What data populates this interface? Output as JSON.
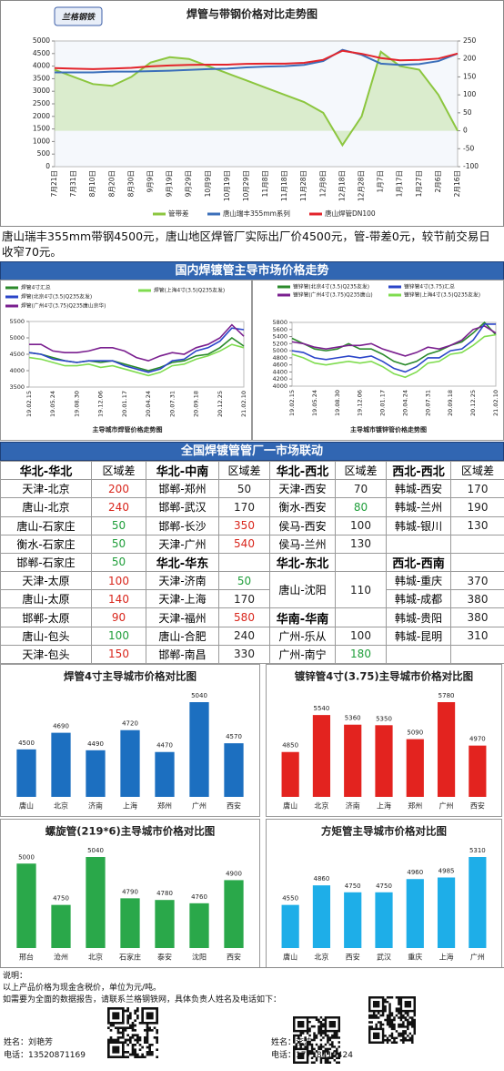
{
  "logo": "兰格钢铁",
  "summary": "唐山瑞丰355mm带钢4500元，唐山地区焊管厂实际出厂价4500元，管-带差0元，较节前交易日收窄70元。",
  "banners": [
    "国内焊镀管主导市场价格走势",
    "全国焊镀管管厂一市场联动"
  ],
  "chart_data": [
    {
      "type": "line",
      "title": "焊管与带钢价格对比走势图",
      "categories": [
        "7月21日",
        "7月31日",
        "8月10日",
        "8月20日",
        "8月30日",
        "9月9日",
        "9月19日",
        "9月29日",
        "10月9日",
        "10月19日",
        "10月29日",
        "11月8日",
        "11月18日",
        "11月28日",
        "12月8日",
        "12月18日",
        "12月28日",
        "1月7日",
        "1月17日",
        "1月27日",
        "2月6日",
        "2月16日"
      ],
      "series": [
        {
          "name": "管带差",
          "color": "#8cc63f",
          "type": "area",
          "axis": "y2",
          "values": [
            170,
            150,
            130,
            125,
            150,
            190,
            205,
            200,
            180,
            160,
            140,
            120,
            100,
            80,
            50,
            -40,
            40,
            220,
            180,
            170,
            100,
            0
          ]
        },
        {
          "name": "唐山瑞丰355mm系列",
          "color": "#3b6fba",
          "values": [
            3750,
            3750,
            3750,
            3780,
            3780,
            3800,
            3820,
            3850,
            3880,
            3900,
            3950,
            3980,
            4000,
            4050,
            4200,
            4650,
            4450,
            4100,
            4050,
            4080,
            4200,
            4500
          ]
        },
        {
          "name": "唐山焊管DN100",
          "color": "#e3242b",
          "values": [
            3920,
            3900,
            3880,
            3905,
            3930,
            3990,
            4025,
            4050,
            4060,
            4060,
            4090,
            4100,
            4100,
            4130,
            4250,
            4610,
            4490,
            4320,
            4230,
            4250,
            4300,
            4500
          ]
        }
      ],
      "ylim": [
        0,
        5000
      ],
      "yticks": [
        0,
        500,
        1000,
        1500,
        2000,
        2500,
        3000,
        3500,
        4000,
        4500,
        5000
      ],
      "y2lim": [
        -100,
        250
      ],
      "y2ticks": [
        -100,
        -50,
        0,
        50,
        100,
        150,
        200,
        250
      ],
      "grid": false
    },
    {
      "type": "line",
      "title": "主导城市焊管价格走势图",
      "categories": [
        "19.02.15",
        null,
        "19.05.24",
        null,
        "19.08.30",
        null,
        "19.12.06",
        null,
        "20.01.17",
        null,
        "20.04.24",
        null,
        "20.07.31",
        null,
        "20.09.18",
        null,
        "20.12.25",
        null,
        "21.02.10"
      ],
      "series": [
        {
          "name": "焊管4寸汇总",
          "color": "#2b8a2b",
          "values": [
            4550,
            4500,
            4400,
            4300,
            4250,
            4300,
            4250,
            4300,
            4200,
            4100,
            4000,
            4100,
            4250,
            4300,
            4450,
            4500,
            4700,
            5000,
            4750
          ]
        },
        {
          "name": "焊管(北京4寸(3.5)Q235友发)",
          "color": "#2a44c8",
          "values": [
            4550,
            4500,
            4350,
            4300,
            4250,
            4300,
            4300,
            4300,
            4150,
            4050,
            3950,
            4050,
            4300,
            4350,
            4600,
            4700,
            4900,
            5300,
            5250
          ]
        },
        {
          "name": "焊管(广州4寸(3.75)Q235唐山京华)",
          "color": "#7a1f8f",
          "values": [
            4800,
            4800,
            4600,
            4550,
            4550,
            4600,
            4700,
            4700,
            4600,
            4400,
            4300,
            4450,
            4550,
            4500,
            4700,
            4800,
            5000,
            5400,
            5050
          ]
        },
        {
          "name": "焊管(上海4寸(3.5)Q235友发)",
          "color": "#7fdc4f",
          "values": [
            4400,
            4350,
            4250,
            4150,
            4150,
            4200,
            4100,
            4150,
            4050,
            3950,
            3850,
            3950,
            4150,
            4200,
            4350,
            4450,
            4600,
            4800,
            4700
          ]
        }
      ],
      "ylim": [
        3500,
        5500
      ],
      "yticks": [
        3500,
        4000,
        4500,
        5000,
        5500
      ],
      "grid": false
    },
    {
      "type": "line",
      "title": "主导城市镀锌管价格走势图",
      "categories": [
        "19.02.15",
        null,
        "19.05.24",
        null,
        "19.08.30",
        null,
        "19.12.06",
        null,
        "20.01.17",
        null,
        "20.04.24",
        null,
        "20.07.31",
        null,
        "20.09.18",
        null,
        "20.12.25",
        null,
        "21.02.10"
      ],
      "series": [
        {
          "name": "镀锌管(北京4寸(3.5)Q235友发)",
          "color": "#2b8a2b",
          "values": [
            5350,
            5200,
            5050,
            5000,
            5050,
            5200,
            5050,
            5050,
            4900,
            4700,
            4600,
            4700,
            4900,
            5000,
            5150,
            5250,
            5500,
            5800,
            5450
          ]
        },
        {
          "name": "镀锌管(广州4寸(3.75)Q235唐山)",
          "color": "#7a1f8f",
          "values": [
            5250,
            5200,
            5100,
            5050,
            5100,
            5150,
            5150,
            5200,
            5050,
            4950,
            4850,
            4950,
            5100,
            5050,
            5150,
            5300,
            5600,
            5700,
            5500
          ]
        },
        {
          "name": "镀锌管4寸(3.75)汇总",
          "color": "#2a44c8",
          "values": [
            5000,
            4950,
            4800,
            4750,
            4800,
            4850,
            4800,
            4850,
            4700,
            4500,
            4400,
            4550,
            4800,
            4800,
            5000,
            5050,
            5300,
            5750,
            5750
          ]
        },
        {
          "name": "镀锌管(上海4寸(3.5)Q235友发)",
          "color": "#7fdc4f",
          "values": [
            4900,
            4800,
            4650,
            4600,
            4650,
            4700,
            4650,
            4700,
            4550,
            4350,
            4250,
            4400,
            4650,
            4700,
            4900,
            4950,
            5150,
            5400,
            5450
          ]
        }
      ],
      "ylim": [
        4000,
        5800
      ],
      "yticks": [
        4000,
        4200,
        4400,
        4600,
        4800,
        5000,
        5200,
        5400,
        5600,
        5800
      ],
      "grid": false
    },
    {
      "type": "bar",
      "title": "焊管4寸主导城市价格对比图",
      "categories": [
        "唐山",
        "北京",
        "济南",
        "上海",
        "郑州",
        "广州",
        "西安"
      ],
      "values": [
        4500,
        4690,
        4490,
        4720,
        4470,
        5040,
        4570
      ],
      "color": "#1c6fc0"
    },
    {
      "type": "bar",
      "title": "镀锌管4寸(3.75)主导城市价格对比图",
      "categories": [
        "唐山",
        "北京",
        "济南",
        "上海",
        "郑州",
        "广州",
        "西安"
      ],
      "values": [
        4850,
        5540,
        5360,
        5350,
        5090,
        5780,
        4970
      ],
      "color": "#e3231f"
    },
    {
      "type": "bar",
      "title": "螺旋管(219*6)主导城市价格对比图",
      "categories": [
        "邢台",
        "沧州",
        "北京",
        "石家庄",
        "泰安",
        "沈阳",
        "西安"
      ],
      "values": [
        5000,
        4750,
        5040,
        4790,
        4780,
        4760,
        4900
      ],
      "color": "#2aa84a"
    },
    {
      "type": "bar",
      "title": "方矩管主导城市价格对比图",
      "categories": [
        "唐山",
        "北京",
        "西安",
        "武汉",
        "重庆",
        "上海",
        "广州"
      ],
      "values": [
        4550,
        4860,
        4750,
        4750,
        4960,
        4985,
        5310
      ],
      "color": "#1eaee8"
    }
  ],
  "table": {
    "groups": [
      {
        "sections": [
          {
            "title": "华北-华北",
            "head": "区域差",
            "rows": [
              {
                "route": "天津-北京",
                "diff": 200,
                "color": "#d9261c"
              },
              {
                "route": "唐山-北京",
                "diff": 240,
                "color": "#d9261c"
              },
              {
                "route": "唐山-石家庄",
                "diff": 50,
                "color": "#1f9e3a"
              },
              {
                "route": "衡水-石家庄",
                "diff": 50,
                "color": "#1f9e3a"
              },
              {
                "route": "邯郸-石家庄",
                "diff": 50,
                "color": "#1f9e3a"
              },
              {
                "route": "天津-太原",
                "diff": 100,
                "color": "#d9261c"
              },
              {
                "route": "唐山-太原",
                "diff": 140,
                "color": "#d9261c"
              },
              {
                "route": "邯郸-太原",
                "diff": 90,
                "color": "#d9261c"
              },
              {
                "route": "唐山-包头",
                "diff": 100,
                "color": "#1f9e3a"
              },
              {
                "route": "天津-包头",
                "diff": 150,
                "color": "#d9261c"
              }
            ]
          }
        ]
      },
      {
        "sections": [
          {
            "title": "华北-中南",
            "head": "区域差",
            "rows": [
              {
                "route": "邯郸-郑州",
                "diff": 50,
                "color": "#222222"
              },
              {
                "route": "邯郸-武汉",
                "diff": 170,
                "color": "#222222"
              },
              {
                "route": "邯郸-长沙",
                "diff": 350,
                "color": "#d9261c"
              },
              {
                "route": "天津-广州",
                "diff": 540,
                "color": "#d9261c"
              }
            ]
          },
          {
            "title": "华北-华东",
            "rows": [
              {
                "route": "天津-济南",
                "diff": 50,
                "color": "#1f9e3a"
              },
              {
                "route": "天津-上海",
                "diff": 170,
                "color": "#222222"
              },
              {
                "route": "天津-福州",
                "diff": 580,
                "color": "#d9261c"
              },
              {
                "route": "唐山-合肥",
                "diff": 240,
                "color": "#222222"
              },
              {
                "route": "邯郸-南昌",
                "diff": 330,
                "color": "#222222"
              }
            ]
          }
        ]
      },
      {
        "sections": [
          {
            "title": "华北-西北",
            "head": "区域差",
            "rows": [
              {
                "route": "天津-西安",
                "diff": 70,
                "color": "#222222"
              },
              {
                "route": "衡水-西安",
                "diff": 80,
                "color": "#1f9e3a"
              },
              {
                "route": "侯马-西安",
                "diff": 100,
                "color": "#222222"
              },
              {
                "route": "侯马-兰州",
                "diff": 130,
                "color": "#222222"
              }
            ]
          },
          {
            "title": "华北-东北",
            "rows": [
              {
                "route": "唐山-沈阳",
                "diff": 110,
                "color": "#222222"
              }
            ]
          },
          {
            "title": "华南-华南",
            "rows": [
              {
                "route": "广州-乐从",
                "diff": 100,
                "color": "#222222"
              },
              {
                "route": "广州-南宁",
                "diff": 180,
                "color": "#1f9e3a"
              }
            ]
          }
        ]
      },
      {
        "sections": [
          {
            "title": "西北-西北",
            "head": "区域差",
            "rows": [
              {
                "route": "韩城-西安",
                "diff": 170,
                "color": "#222222"
              },
              {
                "route": "韩城-兰州",
                "diff": 190,
                "color": "#222222"
              },
              {
                "route": "韩城-银川",
                "diff": 130,
                "color": "#222222"
              }
            ]
          },
          {
            "title": "西北-西南",
            "rows": [
              {
                "route": "韩城-重庆",
                "diff": 370,
                "color": "#222222"
              },
              {
                "route": "韩城-成都",
                "diff": 380,
                "color": "#222222"
              },
              {
                "route": "韩城-贵阳",
                "diff": 380,
                "color": "#222222"
              },
              {
                "route": "韩城-昆明",
                "diff": 310,
                "color": "#222222"
              }
            ]
          }
        ]
      }
    ]
  },
  "footer": {
    "note_title": "说明：",
    "notes": [
      "以上产品价格为现金含税价，单位为元/吨。",
      "如需要为全面的数据报告，请联系兰格钢铁网，具体负责人姓名及电话如下："
    ],
    "contacts": [
      {
        "name": "姓名：刘艳芳",
        "phone": "电话：13520871169"
      },
      {
        "name": "姓名：李波",
        "phone": "电话：17718415424"
      }
    ]
  }
}
